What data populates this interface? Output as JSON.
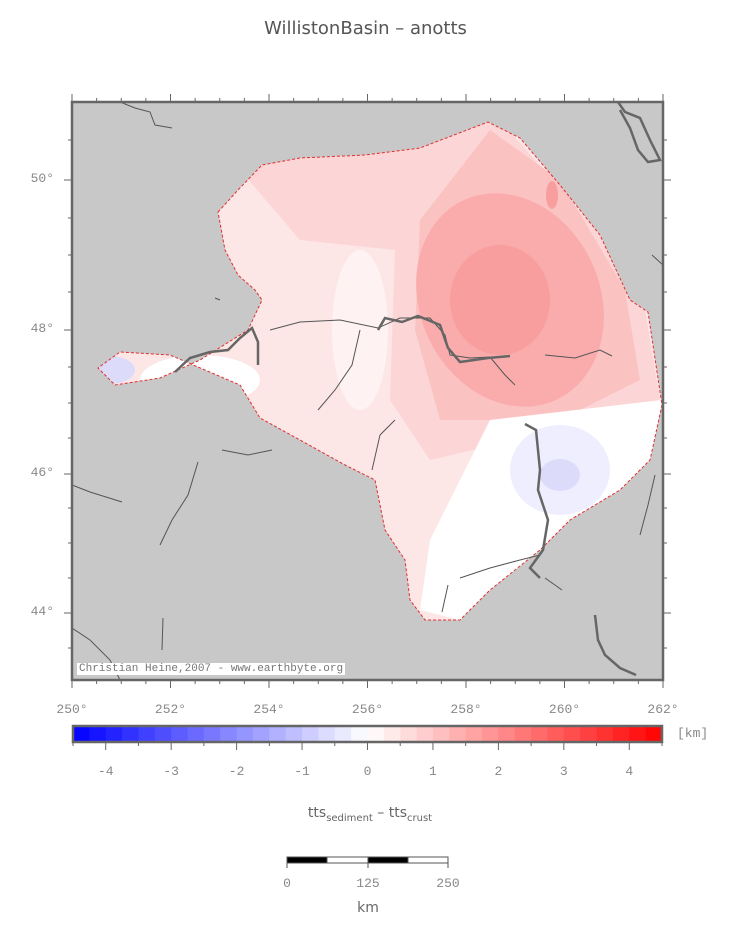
{
  "title": "WillistonBasin – anotts",
  "map": {
    "credit": "Christian Heine,2007 - www.earthbyte.org",
    "lon_labels": [
      "250°",
      "252°",
      "254°",
      "256°",
      "258°",
      "260°",
      "262°"
    ],
    "lat_labels": [
      "50°",
      "48°",
      "46°",
      "44°"
    ],
    "land_color": "#c8c8c8",
    "lon_range": [
      250,
      262
    ],
    "lat_range": [
      43,
      51
    ]
  },
  "colorbar": {
    "unit": "[km]",
    "range": [
      -4.5,
      4.5
    ],
    "step": 0.25,
    "low_color": "#0000ff",
    "mid_color": "#ffffff",
    "high_color": "#ff0000",
    "tick_labels": [
      "-4",
      "-3",
      "-2",
      "-1",
      "0",
      "1",
      "2",
      "3",
      "4"
    ]
  },
  "quantity": {
    "base1": "tts",
    "sub1": "sediment",
    "sep": " – ",
    "base2": "tts",
    "sub2": "crust"
  },
  "scalebar": {
    "labels": [
      "0",
      "125",
      "250"
    ],
    "unit": "km"
  }
}
